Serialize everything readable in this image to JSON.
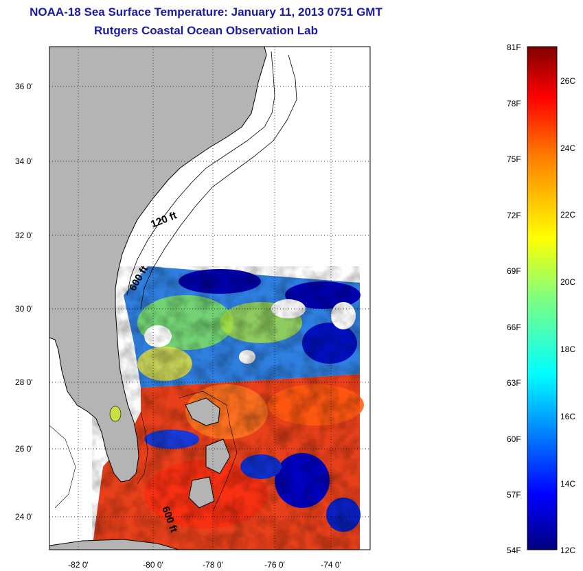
{
  "title": {
    "line1": "NOAA-18 Sea Surface Temperature:  January 11, 2013 0751 GMT",
    "line2": "Rutgers Coastal Ocean Observation Lab"
  },
  "axes": {
    "lat_ticks": [
      "36 0'",
      "34 0'",
      "32 0'",
      "30 0'",
      "28 0'",
      "26 0'",
      "24 0'"
    ],
    "lon_ticks": [
      "-82 0'",
      "-80 0'",
      "-78 0'",
      "-76 0'",
      "-74 0'"
    ]
  },
  "contours": {
    "shallow": "120 ft",
    "deep": "600 ft",
    "deep_south": "600 ft"
  },
  "colorbar": {
    "fahrenheit": [
      "81F",
      "78F",
      "75F",
      "72F",
      "69F",
      "66F",
      "63F",
      "60F",
      "57F",
      "54F"
    ],
    "celsius": [
      "26C",
      "24C",
      "22C",
      "20C",
      "18C",
      "16C",
      "14C",
      "12C"
    ]
  },
  "colors": {
    "land": "#b4b4b4",
    "title": "#1a1aa6",
    "cold": "#0000a0",
    "warm": "#e63c14"
  }
}
